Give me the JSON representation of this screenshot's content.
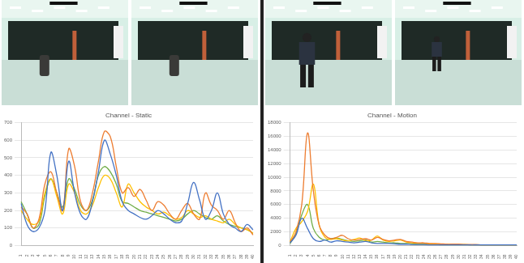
{
  "chart_data": [
    {
      "type": "line",
      "title": "Channel - Static",
      "categories": [
        "1",
        "2",
        "3",
        "4",
        "5",
        "6",
        "7",
        "8",
        "9",
        "10",
        "11",
        "12",
        "13",
        "14",
        "15",
        "16",
        "17",
        "18",
        "19",
        "20",
        "21",
        "22",
        "23",
        "24",
        "25",
        "26",
        "27",
        "28",
        "29",
        "30",
        "31",
        "32",
        "33",
        "34",
        "35",
        "36",
        "37",
        "38",
        "39",
        "40"
      ],
      "ylim": [
        0,
        700
      ],
      "yticks": [
        0,
        100,
        200,
        300,
        400,
        500,
        600,
        700
      ],
      "grid": true,
      "series": [
        {
          "color": "#4472c4",
          "values": [
            240,
            120,
            80,
            100,
            200,
            530,
            400,
            200,
            480,
            300,
            180,
            150,
            250,
            420,
            600,
            520,
            400,
            250,
            200,
            180,
            160,
            150,
            170,
            200,
            180,
            150,
            130,
            140,
            240,
            360,
            260,
            150,
            200,
            300,
            180,
            120,
            100,
            80,
            120,
            90
          ]
        },
        {
          "color": "#ed7d31",
          "values": [
            220,
            180,
            100,
            150,
            350,
            420,
            300,
            200,
            550,
            450,
            250,
            200,
            300,
            480,
            650,
            620,
            450,
            300,
            330,
            280,
            320,
            260,
            200,
            250,
            230,
            180,
            150,
            200,
            240,
            180,
            150,
            300,
            230,
            200,
            150,
            200,
            130,
            80,
            100,
            60
          ]
        },
        {
          "color": "#ffc000",
          "values": [
            200,
            150,
            120,
            140,
            300,
            380,
            280,
            180,
            350,
            300,
            200,
            180,
            230,
            330,
            400,
            380,
            300,
            220,
            350,
            300,
            250,
            220,
            200,
            180,
            190,
            170,
            150,
            160,
            200,
            180,
            160,
            170,
            150,
            140,
            130,
            150,
            120,
            100,
            90,
            70
          ]
        },
        {
          "color": "#70ad47",
          "values": [
            250,
            180,
            100,
            120,
            280,
            380,
            300,
            220,
            380,
            320,
            230,
            200,
            260,
            400,
            450,
            420,
            350,
            250,
            240,
            220,
            200,
            190,
            180,
            170,
            160,
            150,
            140,
            150,
            180,
            200,
            180,
            160,
            150,
            170,
            140,
            120,
            110,
            100,
            90,
            70
          ]
        }
      ]
    },
    {
      "type": "line",
      "title": "Channel - Motion",
      "categories": [
        "1",
        "2",
        "3",
        "4",
        "5",
        "6",
        "7",
        "8",
        "9",
        "10",
        "11",
        "12",
        "13",
        "14",
        "15",
        "16",
        "17",
        "18",
        "19",
        "20",
        "21",
        "22",
        "23",
        "24",
        "25",
        "26",
        "27",
        "28",
        "29",
        "30",
        "31",
        "32",
        "33",
        "34",
        "35",
        "36",
        "37",
        "38",
        "39",
        "40"
      ],
      "ylim": [
        0,
        18000
      ],
      "yticks": [
        0,
        2000,
        4000,
        6000,
        8000,
        10000,
        12000,
        14000,
        16000,
        18000
      ],
      "grid": true,
      "series": [
        {
          "color": "#4472c4",
          "values": [
            400,
            1500,
            4000,
            2500,
            1000,
            600,
            800,
            500,
            700,
            600,
            500,
            400,
            500,
            600,
            400,
            300,
            300,
            300,
            250,
            200,
            200,
            150,
            150,
            150,
            100,
            100,
            100,
            100,
            100,
            100,
            100,
            80,
            80,
            80,
            80,
            80,
            80,
            80,
            80,
            80
          ]
        },
        {
          "color": "#ed7d31",
          "values": [
            500,
            2000,
            6000,
            16500,
            8000,
            3000,
            1500,
            1000,
            1200,
            1500,
            1000,
            800,
            900,
            1000,
            800,
            1200,
            900,
            700,
            800,
            900,
            600,
            500,
            400,
            400,
            300,
            300,
            250,
            200,
            200,
            200,
            150,
            150,
            150,
            100,
            100,
            100,
            100,
            100,
            100,
            100
          ]
        },
        {
          "color": "#ffc000",
          "values": [
            600,
            2500,
            3500,
            5000,
            9000,
            3000,
            1200,
            900,
            1000,
            800,
            700,
            900,
            1100,
            700,
            800,
            1400,
            800,
            600,
            700,
            800,
            500,
            400,
            300,
            300,
            250,
            200,
            200,
            200,
            150,
            150,
            150,
            100,
            100,
            100,
            100,
            100,
            100,
            100,
            100,
            100
          ]
        },
        {
          "color": "#70ad47",
          "values": [
            300,
            1800,
            4500,
            6000,
            2500,
            1200,
            800,
            1000,
            1100,
            900,
            700,
            600,
            700,
            800,
            500,
            600,
            500,
            400,
            400,
            300,
            300,
            250,
            200,
            200,
            150,
            150,
            100,
            100,
            100,
            100,
            100,
            100,
            100,
            80,
            80,
            80,
            80,
            80,
            80,
            80
          ]
        }
      ]
    }
  ]
}
